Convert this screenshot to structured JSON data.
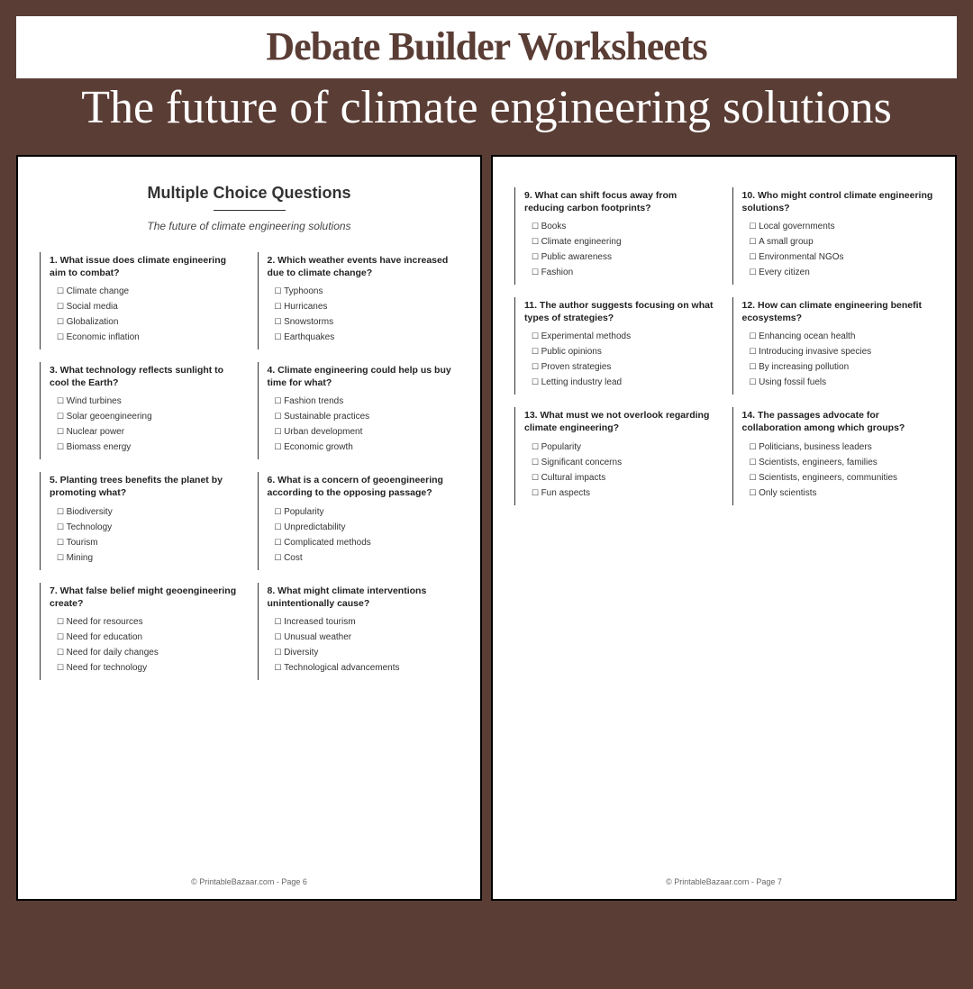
{
  "header": {
    "title": "Debate Builder Worksheets",
    "subtitle": "The future of climate engineering solutions"
  },
  "page1": {
    "heading": "Multiple Choice Questions",
    "subheading": "The future of climate engineering solutions",
    "footer": "© PrintableBazaar.com - Page 6",
    "questions": [
      {
        "q": "1. What issue does climate engineering aim to combat?",
        "opts": [
          "Climate change",
          "Social media",
          "Globalization",
          "Economic inflation"
        ]
      },
      {
        "q": "2. Which weather events have increased due to climate change?",
        "opts": [
          "Typhoons",
          "Hurricanes",
          "Snowstorms",
          "Earthquakes"
        ]
      },
      {
        "q": "3. What technology reflects sunlight to cool the Earth?",
        "opts": [
          "Wind turbines",
          "Solar geoengineering",
          "Nuclear power",
          "Biomass energy"
        ]
      },
      {
        "q": "4. Climate engineering could help us buy time for what?",
        "opts": [
          "Fashion trends",
          "Sustainable practices",
          "Urban development",
          "Economic growth"
        ]
      },
      {
        "q": "5. Planting trees benefits the planet by promoting what?",
        "opts": [
          "Biodiversity",
          "Technology",
          "Tourism",
          "Mining"
        ]
      },
      {
        "q": "6. What is a concern of geoengineering according to the opposing passage?",
        "opts": [
          "Popularity",
          "Unpredictability",
          "Complicated methods",
          "Cost"
        ]
      },
      {
        "q": "7. What false belief might geoengineering create?",
        "opts": [
          "Need for resources",
          "Need for education",
          "Need for daily changes",
          "Need for technology"
        ]
      },
      {
        "q": "8. What might climate interventions unintentionally cause?",
        "opts": [
          "Increased tourism",
          "Unusual weather",
          "Diversity",
          "Technological advancements"
        ]
      }
    ]
  },
  "page2": {
    "footer": "© PrintableBazaar.com - Page 7",
    "questions": [
      {
        "q": "9. What can shift focus away from reducing carbon footprints?",
        "opts": [
          "Books",
          "Climate engineering",
          "Public awareness",
          "Fashion"
        ]
      },
      {
        "q": "10. Who might control climate engineering solutions?",
        "opts": [
          "Local governments",
          "A small group",
          "Environmental NGOs",
          "Every citizen"
        ]
      },
      {
        "q": "11. The author suggests focusing on what types of strategies?",
        "opts": [
          "Experimental methods",
          "Public opinions",
          "Proven strategies",
          "Letting industry lead"
        ]
      },
      {
        "q": "12. How can climate engineering benefit ecosystems?",
        "opts": [
          "Enhancing ocean health",
          "Introducing invasive species",
          "By increasing pollution",
          "Using fossil fuels"
        ]
      },
      {
        "q": "13. What must we not overlook regarding climate engineering?",
        "opts": [
          "Popularity",
          "Significant concerns",
          "Cultural impacts",
          "Fun aspects"
        ]
      },
      {
        "q": "14. The passages advocate for collaboration among which groups?",
        "opts": [
          "Politicians, business leaders",
          "Scientists, engineers, families",
          "Scientists, engineers, communities",
          "Only scientists"
        ]
      }
    ]
  }
}
